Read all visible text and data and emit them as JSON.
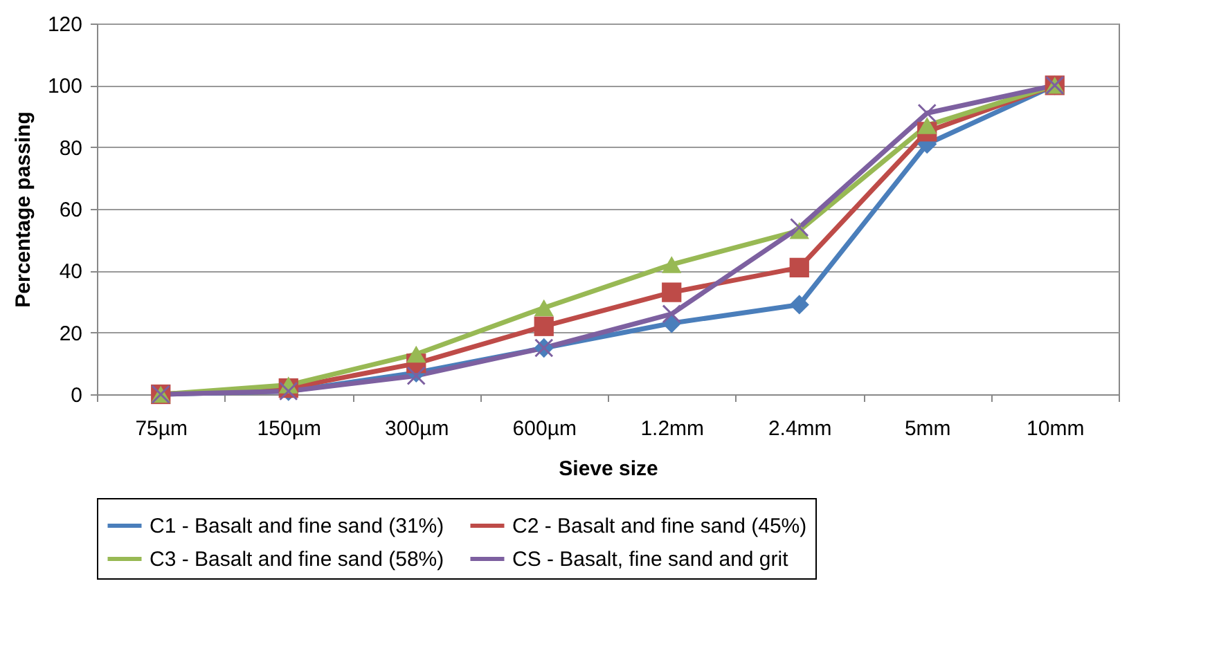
{
  "chart_data": {
    "type": "line",
    "xlabel": "Sieve size",
    "ylabel": "Percentage passing",
    "categories": [
      "75µm",
      "150µm",
      "300µm",
      "600µm",
      "1.2mm",
      "2.4mm",
      "5mm",
      "10mm"
    ],
    "series": [
      {
        "name": "C1 - Basalt and fine sand (31%)",
        "color": "#4a7ebb",
        "marker": "diamond",
        "values": [
          0,
          1,
          7,
          15,
          23,
          29,
          81,
          100
        ]
      },
      {
        "name": "C2 - Basalt and fine sand (45%)",
        "color": "#be4b48",
        "marker": "square",
        "values": [
          0,
          2,
          10,
          22,
          33,
          41,
          85,
          100
        ]
      },
      {
        "name": "C3 - Basalt and fine sand (58%)",
        "color": "#98b954",
        "marker": "triangle",
        "values": [
          0,
          3,
          13,
          28,
          42,
          53,
          87,
          100
        ]
      },
      {
        "name": "CS - Basalt, fine sand and grit",
        "color": "#7d60a0",
        "marker": "cross",
        "values": [
          0,
          1,
          6,
          15,
          26,
          54,
          91,
          100
        ]
      }
    ],
    "ylim": [
      0,
      120
    ],
    "yticks": [
      0,
      20,
      40,
      60,
      80,
      100,
      120
    ],
    "grid": "y",
    "legend": "bottom",
    "line_style": "solid"
  }
}
